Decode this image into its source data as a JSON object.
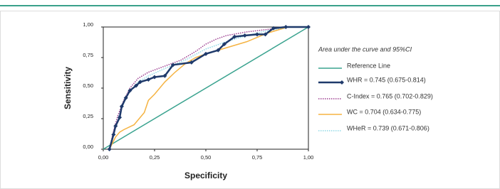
{
  "chart_data": {
    "type": "line",
    "xlabel": "Specificity",
    "ylabel": "Sensitivity",
    "legend_title": "Area under the curve and 95%CI",
    "xlim": [
      0,
      1
    ],
    "ylim": [
      0,
      1
    ],
    "xticks": [
      {
        "value": 0,
        "label": "0,00"
      },
      {
        "value": 0.25,
        "label": "0,25"
      },
      {
        "value": 0.5,
        "label": "0,50"
      },
      {
        "value": 0.75,
        "label": "0,75"
      },
      {
        "value": 1,
        "label": "1,00"
      }
    ],
    "yticks": [
      {
        "value": 0,
        "label": "0,00"
      },
      {
        "value": 0.25,
        "label": "0,25"
      },
      {
        "value": 0.5,
        "label": "0,50"
      },
      {
        "value": 0.75,
        "label": "0,75"
      },
      {
        "value": 1,
        "label": "1,00"
      }
    ],
    "legend_position": "right",
    "series": [
      {
        "name": "Reference Line",
        "color": "#3aa38f",
        "width": 1.5,
        "dash": "solid",
        "markers": false,
        "x": [
          0,
          1
        ],
        "values": [
          0,
          1
        ]
      },
      {
        "name": "WHR = 0.745 (0.675-0.814)",
        "color": "#1f3a6b",
        "width": 2.5,
        "dash": "solid",
        "markers": true,
        "x": [
          0.03,
          0.05,
          0.06,
          0.08,
          0.09,
          0.11,
          0.13,
          0.16,
          0.18,
          0.22,
          0.25,
          0.3,
          0.34,
          0.43,
          0.5,
          0.56,
          0.59,
          0.64,
          0.69,
          0.75,
          0.79,
          0.83,
          0.89,
          1
        ],
        "values": [
          0,
          0.12,
          0.19,
          0.26,
          0.35,
          0.42,
          0.48,
          0.52,
          0.55,
          0.57,
          0.59,
          0.6,
          0.69,
          0.71,
          0.78,
          0.81,
          0.86,
          0.92,
          0.93,
          0.94,
          0.94,
          0.99,
          1,
          1
        ]
      },
      {
        "name": "C-Index = 0.765 (0.702-0.829)",
        "color": "#9b3d8f",
        "width": 1.5,
        "dash": "dotted",
        "markers": false,
        "x": [
          0.03,
          0.05,
          0.07,
          0.1,
          0.13,
          0.17,
          0.22,
          0.3,
          0.38,
          0.45,
          0.5,
          0.55,
          0.6,
          0.7,
          0.8,
          0.9,
          1
        ],
        "values": [
          0,
          0.15,
          0.27,
          0.4,
          0.5,
          0.58,
          0.63,
          0.68,
          0.73,
          0.8,
          0.86,
          0.9,
          0.93,
          0.96,
          0.98,
          1,
          1
        ]
      },
      {
        "name": "WC = 0.704 (0.634-0.775)",
        "color": "#f5b342",
        "width": 1.5,
        "dash": "solid",
        "markers": false,
        "x": [
          0.03,
          0.06,
          0.08,
          0.1,
          0.15,
          0.2,
          0.22,
          0.25,
          0.3,
          0.35,
          0.4,
          0.45,
          0.5,
          0.6,
          0.7,
          0.8,
          0.9,
          1
        ],
        "values": [
          0,
          0.1,
          0.14,
          0.16,
          0.2,
          0.3,
          0.4,
          0.45,
          0.55,
          0.63,
          0.7,
          0.75,
          0.78,
          0.83,
          0.88,
          0.95,
          1,
          1
        ]
      },
      {
        "name": "WHeR = 0.739 (0.671-0.806)",
        "color": "#8fd9e6",
        "width": 1.5,
        "dash": "dotted",
        "markers": false,
        "x": [
          0.03,
          0.05,
          0.08,
          0.12,
          0.17,
          0.22,
          0.3,
          0.4,
          0.5,
          0.6,
          0.7,
          0.8,
          0.9,
          1
        ],
        "values": [
          0,
          0.12,
          0.3,
          0.45,
          0.55,
          0.6,
          0.66,
          0.73,
          0.82,
          0.88,
          0.93,
          0.97,
          1,
          1
        ]
      }
    ]
  }
}
